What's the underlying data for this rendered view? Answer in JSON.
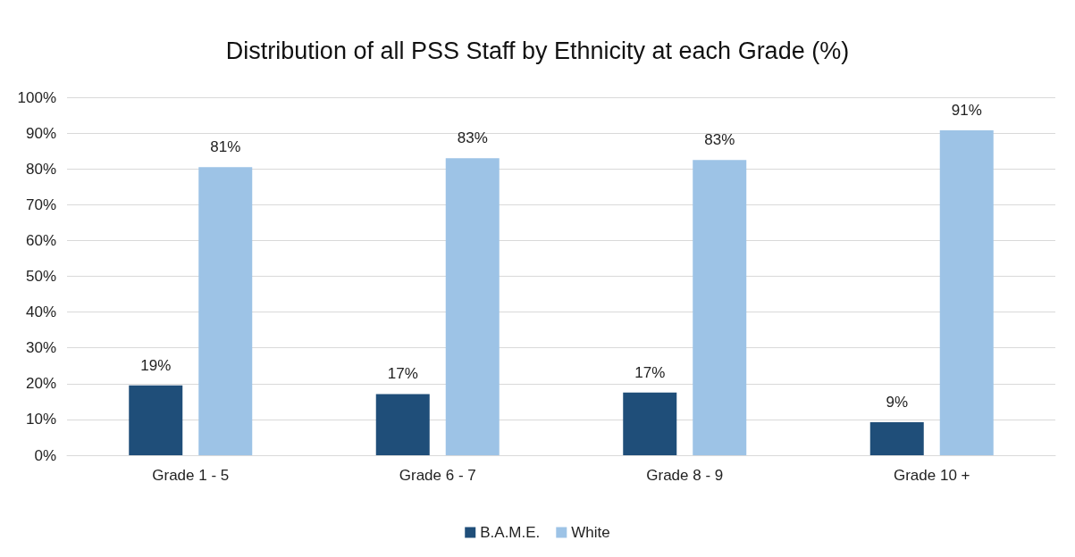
{
  "chart_data": {
    "type": "bar",
    "title": "Distribution of all PSS Staff by Ethnicity at each Grade (%)",
    "categories": [
      "Grade 1 - 5",
      "Grade 6 - 7",
      "Grade 8 - 9",
      "Grade 10 +"
    ],
    "series": [
      {
        "name": "B.A.M.E.",
        "color": "#1f4e79",
        "values": [
          19.5,
          17.1,
          17.5,
          9.2
        ],
        "value_labels": [
          "19%",
          "17%",
          "17%",
          "9%"
        ]
      },
      {
        "name": "White",
        "color": "#9dc3e6",
        "values": [
          80.5,
          83,
          82.5,
          90.8
        ],
        "value_labels": [
          "81%",
          "83%",
          "83%",
          "91%"
        ]
      }
    ],
    "ylim": [
      0,
      100
    ],
    "yticks": [
      {
        "value": 0,
        "label": "0%"
      },
      {
        "value": 10,
        "label": "10%"
      },
      {
        "value": 20,
        "label": "20%"
      },
      {
        "value": 30,
        "label": "30%"
      },
      {
        "value": 40,
        "label": "40%"
      },
      {
        "value": 50,
        "label": "50%"
      },
      {
        "value": 60,
        "label": "60%"
      },
      {
        "value": 70,
        "label": "70%"
      },
      {
        "value": 80,
        "label": "80%"
      },
      {
        "value": 90,
        "label": "90%"
      },
      {
        "value": 100,
        "label": "100%"
      }
    ],
    "grid": "y",
    "legend": "bottom"
  }
}
